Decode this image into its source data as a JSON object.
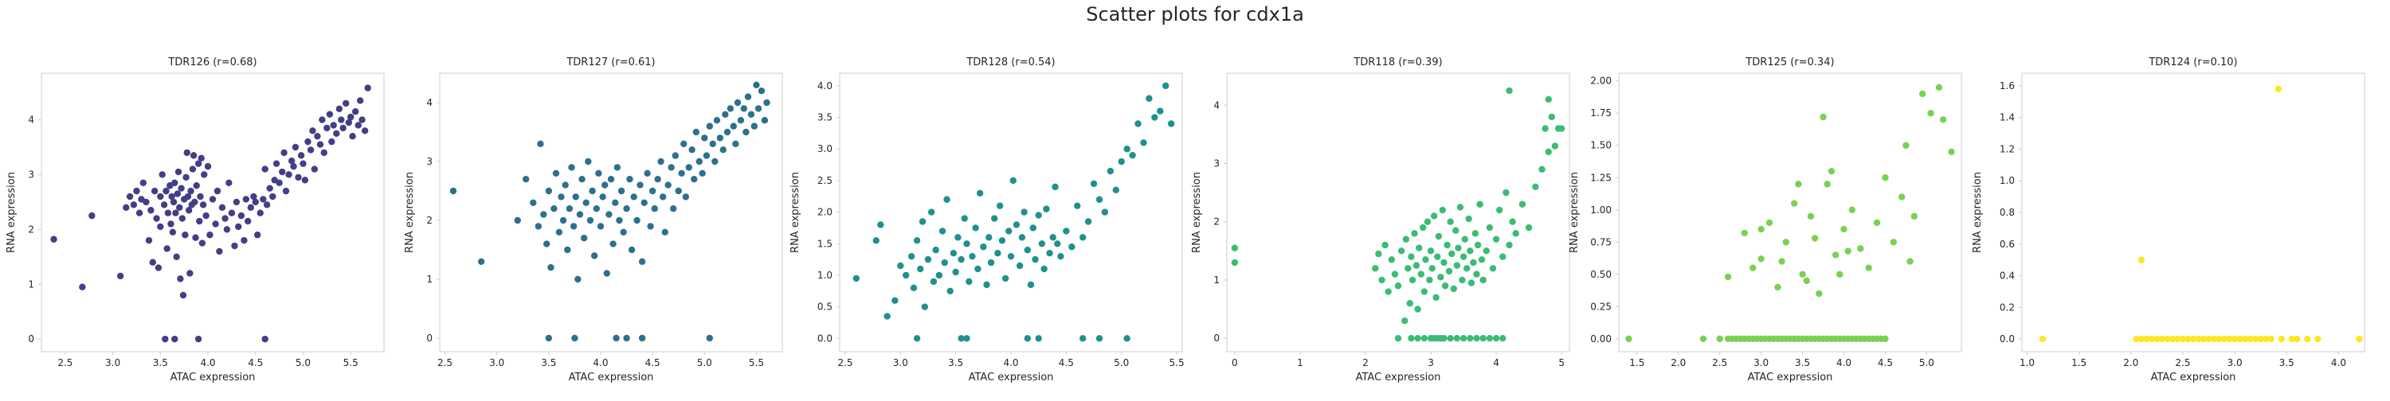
{
  "figure": {
    "title": "Scatter plots for cdx1a"
  },
  "chart_data": [
    {
      "type": "scatter",
      "title": "TDR126 (r=0.68)",
      "xlabel": "ATAC expression",
      "ylabel": "RNA expression",
      "xlim": [
        2.25,
        5.85
      ],
      "ylim": [
        -0.23,
        4.85
      ],
      "xticks": [
        "2.5",
        "3.0",
        "3.5",
        "4.0",
        "4.5",
        "5.0",
        "5.5"
      ],
      "xtick_values": [
        2.5,
        3.0,
        3.5,
        4.0,
        4.5,
        5.0,
        5.5
      ],
      "yticks": [
        "0",
        "1",
        "2",
        "3",
        "4"
      ],
      "ytick_values": [
        0,
        1,
        2,
        3,
        4
      ],
      "color": "#433e85",
      "grid": false,
      "x": [
        2.38,
        2.68,
        2.78,
        3.08,
        3.14,
        3.18,
        3.22,
        3.25,
        3.28,
        3.3,
        3.32,
        3.35,
        3.38,
        3.4,
        3.42,
        3.44,
        3.46,
        3.48,
        3.5,
        3.5,
        3.52,
        3.54,
        3.56,
        3.57,
        3.58,
        3.6,
        3.61,
        3.62,
        3.63,
        3.64,
        3.65,
        3.66,
        3.67,
        3.68,
        3.69,
        3.7,
        3.71,
        3.72,
        3.73,
        3.74,
        3.75,
        3.76,
        3.77,
        3.78,
        3.79,
        3.8,
        3.81,
        3.82,
        3.83,
        3.84,
        3.85,
        3.86,
        3.87,
        3.88,
        3.9,
        3.91,
        3.92,
        3.93,
        3.94,
        3.95,
        3.96,
        3.98,
        4.0,
        4.02,
        4.05,
        4.08,
        4.1,
        4.12,
        4.15,
        4.18,
        4.2,
        4.22,
        4.25,
        4.28,
        4.3,
        4.32,
        4.35,
        4.38,
        4.4,
        4.42,
        4.45,
        4.48,
        4.5,
        4.52,
        4.55,
        4.58,
        4.6,
        4.62,
        4.65,
        4.68,
        4.7,
        4.72,
        4.75,
        4.78,
        4.8,
        4.82,
        4.85,
        4.88,
        4.9,
        4.92,
        4.95,
        4.98,
        5.0,
        5.02,
        5.05,
        5.08,
        5.1,
        5.12,
        5.15,
        5.18,
        5.2,
        5.22,
        5.25,
        5.28,
        5.3,
        5.32,
        5.35,
        5.38,
        5.4,
        5.42,
        5.45,
        5.48,
        5.5,
        5.52,
        5.55,
        5.58,
        5.6,
        5.62,
        5.65,
        5.68,
        3.55,
        3.65,
        3.9,
        4.6
      ],
      "y": [
        1.82,
        0.95,
        2.25,
        1.15,
        2.4,
        2.6,
        2.45,
        2.7,
        2.3,
        2.55,
        2.85,
        2.5,
        1.8,
        2.35,
        1.4,
        2.7,
        2.2,
        1.3,
        2.6,
        2.05,
        3.0,
        2.45,
        2.7,
        1.65,
        2.3,
        2.8,
        2.1,
        2.6,
        1.95,
        2.5,
        2.85,
        2.3,
        1.5,
        2.65,
        3.05,
        2.4,
        1.1,
        2.75,
        2.2,
        0.8,
        2.55,
        1.9,
        2.95,
        3.4,
        2.6,
        2.35,
        1.2,
        2.7,
        2.45,
        3.1,
        3.35,
        2.5,
        1.85,
        2.8,
        3.2,
        2.15,
        2.6,
        3.3,
        1.75,
        2.45,
        3.0,
        2.25,
        3.15,
        1.9,
        2.55,
        2.1,
        2.7,
        1.6,
        2.4,
        2.2,
        2.0,
        2.85,
        2.3,
        1.7,
        2.5,
        2.05,
        2.25,
        1.8,
        2.55,
        2.15,
        2.4,
        2.6,
        2.5,
        1.9,
        2.3,
        2.55,
        3.1,
        2.45,
        2.75,
        2.6,
        2.9,
        3.2,
        2.85,
        3.05,
        3.4,
        2.7,
        3.0,
        3.25,
        3.15,
        3.5,
        2.95,
        3.35,
        3.2,
        2.9,
        3.6,
        3.45,
        3.8,
        3.1,
        3.7,
        3.55,
        4.0,
        3.4,
        3.85,
        4.1,
        3.6,
        3.9,
        3.75,
        4.2,
        4.0,
        3.85,
        4.3,
        3.95,
        4.05,
        3.7,
        4.15,
        3.9,
        4.35,
        4.0,
        3.8,
        4.58,
        0.0,
        0.0,
        0.0,
        0.0
      ]
    },
    {
      "type": "scatter",
      "title": "TDR127 (r=0.61)",
      "xlabel": "ATAC expression",
      "ylabel": "RNA expression",
      "xlim": [
        2.45,
        5.75
      ],
      "ylim": [
        -0.23,
        4.5
      ],
      "xticks": [
        "2.5",
        "3.0",
        "3.5",
        "4.0",
        "4.5",
        "5.0",
        "5.5"
      ],
      "xtick_values": [
        2.5,
        3.0,
        3.5,
        4.0,
        4.5,
        5.0,
        5.5
      ],
      "yticks": [
        "0",
        "1",
        "2",
        "3",
        "4"
      ],
      "ytick_values": [
        0,
        1,
        2,
        3,
        4
      ],
      "color": "#2d708e",
      "grid": false,
      "x": [
        2.58,
        2.85,
        3.2,
        3.28,
        3.35,
        3.4,
        3.42,
        3.45,
        3.48,
        3.5,
        3.52,
        3.55,
        3.57,
        3.6,
        3.62,
        3.64,
        3.66,
        3.68,
        3.7,
        3.72,
        3.74,
        3.76,
        3.78,
        3.8,
        3.82,
        3.84,
        3.86,
        3.88,
        3.9,
        3.92,
        3.94,
        3.96,
        3.98,
        4.0,
        4.02,
        4.04,
        4.06,
        4.08,
        4.1,
        4.12,
        4.14,
        4.16,
        4.18,
        4.2,
        4.22,
        4.25,
        4.28,
        4.3,
        4.32,
        4.35,
        4.38,
        4.4,
        4.42,
        4.45,
        4.48,
        4.5,
        4.52,
        4.55,
        4.58,
        4.6,
        4.62,
        4.65,
        4.68,
        4.7,
        4.72,
        4.75,
        4.78,
        4.8,
        4.82,
        4.85,
        4.88,
        4.9,
        4.92,
        4.95,
        4.98,
        5.0,
        5.02,
        5.05,
        5.08,
        5.1,
        5.12,
        5.15,
        5.18,
        5.2,
        5.22,
        5.25,
        5.28,
        5.3,
        5.32,
        5.35,
        5.38,
        5.4,
        5.42,
        5.45,
        5.48,
        5.5,
        5.52,
        5.55,
        5.58,
        5.6,
        3.5,
        3.75,
        4.15,
        4.25,
        4.4,
        5.05
      ],
      "y": [
        2.5,
        1.3,
        2.0,
        2.7,
        2.3,
        1.9,
        3.3,
        2.1,
        1.6,
        2.5,
        1.2,
        2.2,
        2.8,
        1.8,
        2.4,
        2.0,
        2.6,
        1.5,
        2.2,
        2.9,
        1.9,
        2.4,
        1.0,
        2.1,
        2.7,
        1.7,
        2.3,
        3.0,
        2.0,
        2.5,
        1.4,
        2.2,
        2.8,
        1.9,
        2.4,
        2.6,
        1.1,
        2.1,
        2.7,
        1.6,
        2.3,
        2.9,
        2.0,
        2.5,
        1.8,
        2.2,
        2.7,
        1.5,
        2.4,
        2.0,
        2.6,
        1.3,
        2.3,
        2.8,
        1.9,
        2.5,
        2.2,
        2.7,
        3.0,
        2.4,
        1.8,
        2.6,
        2.9,
        2.2,
        3.1,
        2.5,
        2.8,
        3.3,
        2.4,
        2.9,
        3.2,
        2.7,
        3.5,
        3.0,
        2.8,
        3.4,
        3.1,
        3.6,
        3.3,
        3.0,
        3.7,
        3.4,
        3.2,
        3.8,
        3.5,
        3.9,
        3.6,
        3.3,
        4.0,
        3.7,
        3.9,
        3.5,
        4.1,
        3.8,
        3.6,
        4.3,
        3.9,
        4.2,
        3.7,
        4.0,
        0.0,
        0.0,
        0.0,
        0.0,
        0.0,
        0.0
      ]
    },
    {
      "type": "scatter",
      "title": "TDR128 (r=0.54)",
      "xlabel": "ATAC expression",
      "ylabel": "RNA expression",
      "xlim": [
        2.45,
        5.55
      ],
      "ylim": [
        -0.21,
        4.2
      ],
      "xticks": [
        "2.5",
        "3.0",
        "3.5",
        "4.0",
        "4.5",
        "5.0",
        "5.5"
      ],
      "xtick_values": [
        2.5,
        3.0,
        3.5,
        4.0,
        4.5,
        5.0,
        5.5
      ],
      "yticks": [
        "0.0",
        "0.5",
        "1.0",
        "1.5",
        "2.0",
        "2.5",
        "3.0",
        "3.5",
        "4.0"
      ],
      "ytick_values": [
        0.0,
        0.5,
        1.0,
        1.5,
        2.0,
        2.5,
        3.0,
        3.5,
        4.0
      ],
      "color": "#20908d",
      "grid": false,
      "x": [
        2.6,
        2.78,
        2.82,
        2.88,
        2.95,
        3.0,
        3.05,
        3.1,
        3.12,
        3.15,
        3.18,
        3.2,
        3.22,
        3.25,
        3.28,
        3.3,
        3.32,
        3.35,
        3.38,
        3.4,
        3.42,
        3.45,
        3.48,
        3.5,
        3.52,
        3.55,
        3.58,
        3.6,
        3.62,
        3.65,
        3.68,
        3.7,
        3.72,
        3.75,
        3.78,
        3.8,
        3.82,
        3.85,
        3.88,
        3.9,
        3.92,
        3.95,
        3.98,
        4.0,
        4.02,
        4.05,
        4.08,
        4.1,
        4.12,
        4.15,
        4.18,
        4.2,
        4.22,
        4.25,
        4.28,
        4.3,
        4.32,
        4.35,
        4.38,
        4.4,
        4.42,
        4.45,
        4.5,
        4.55,
        4.6,
        4.65,
        4.7,
        4.75,
        4.8,
        4.85,
        4.9,
        4.95,
        5.0,
        5.05,
        5.1,
        5.15,
        5.2,
        5.25,
        5.3,
        5.35,
        5.4,
        5.45,
        3.15,
        3.55,
        3.6,
        4.15,
        4.25,
        4.65,
        4.8,
        5.05
      ],
      "y": [
        0.95,
        1.55,
        1.8,
        0.35,
        0.6,
        1.15,
        1.0,
        1.3,
        0.8,
        1.55,
        1.1,
        1.85,
        0.5,
        1.25,
        2.0,
        0.9,
        1.4,
        1.0,
        1.7,
        1.2,
        2.2,
        0.75,
        1.35,
        1.05,
        1.6,
        1.25,
        1.9,
        1.5,
        0.9,
        1.3,
        1.75,
        1.1,
        2.3,
        1.45,
        0.85,
        1.6,
        1.2,
        1.9,
        1.35,
        2.1,
        1.55,
        0.95,
        1.7,
        1.3,
        2.5,
        1.8,
        1.15,
        1.6,
        2.0,
        1.4,
        0.85,
        1.75,
        1.25,
        1.95,
        1.5,
        1.1,
        2.05,
        1.35,
        1.6,
        2.4,
        1.5,
        1.3,
        1.7,
        1.45,
        2.1,
        1.6,
        1.85,
        2.45,
        2.2,
        2.0,
        2.65,
        2.35,
        2.8,
        3.0,
        2.9,
        3.4,
        3.1,
        3.8,
        3.5,
        3.6,
        4.0,
        3.4,
        0.0,
        0.0,
        0.0,
        0.0,
        0.0,
        0.0,
        0.0,
        0.0
      ]
    },
    {
      "type": "scatter",
      "title": "TDR118 (r=0.39)",
      "xlabel": "ATAC expression",
      "ylabel": "RNA expression",
      "xlim": [
        -0.12,
        5.12
      ],
      "ylim": [
        -0.23,
        4.55
      ],
      "xticks": [
        "0",
        "1",
        "2",
        "3",
        "4",
        "5"
      ],
      "xtick_values": [
        0,
        1,
        2,
        3,
        4,
        5
      ],
      "yticks": [
        "0",
        "1",
        "2",
        "3",
        "4"
      ],
      "ytick_values": [
        0,
        1,
        2,
        3,
        4
      ],
      "color": "#3bbb75",
      "grid": false,
      "x": [
        0.0,
        0.0,
        2.15,
        2.2,
        2.25,
        2.3,
        2.35,
        2.4,
        2.45,
        2.5,
        2.55,
        2.6,
        2.62,
        2.65,
        2.68,
        2.7,
        2.72,
        2.75,
        2.78,
        2.8,
        2.82,
        2.85,
        2.88,
        2.9,
        2.92,
        2.95,
        2.98,
        3.0,
        3.02,
        3.05,
        3.08,
        3.1,
        3.12,
        3.15,
        3.18,
        3.2,
        3.22,
        3.25,
        3.28,
        3.3,
        3.32,
        3.35,
        3.38,
        3.4,
        3.42,
        3.45,
        3.48,
        3.5,
        3.52,
        3.55,
        3.58,
        3.6,
        3.62,
        3.65,
        3.68,
        3.7,
        3.72,
        3.75,
        3.78,
        3.8,
        3.85,
        3.9,
        3.95,
        4.0,
        4.05,
        4.1,
        4.15,
        4.2,
        4.25,
        4.3,
        4.4,
        4.5,
        4.6,
        4.7,
        4.75,
        4.8,
        4.85,
        4.9,
        4.95,
        5.0,
        4.2,
        4.8,
        2.5,
        2.7,
        2.8,
        2.9,
        3.0,
        3.05,
        3.1,
        3.15,
        3.2,
        3.3,
        3.4,
        3.5,
        3.6,
        3.7,
        3.8,
        3.9,
        4.0,
        4.1
      ],
      "y": [
        1.55,
        1.3,
        1.2,
        1.45,
        1.0,
        1.6,
        0.8,
        1.35,
        1.1,
        0.9,
        1.5,
        0.3,
        1.7,
        1.2,
        0.6,
        1.4,
        1.0,
        1.8,
        1.25,
        0.5,
        1.55,
        1.1,
        1.9,
        0.8,
        1.35,
        2.0,
        1.0,
        1.5,
        1.2,
        2.1,
        0.7,
        1.4,
        1.75,
        1.05,
        2.2,
        1.3,
        0.9,
        1.6,
        1.15,
        2.0,
        1.45,
        0.85,
        1.85,
        1.25,
        1.55,
        2.25,
        1.0,
        1.4,
        1.7,
        1.2,
        2.05,
        1.5,
        0.95,
        1.3,
        1.8,
        1.1,
        1.6,
        2.3,
        1.35,
        1.0,
        1.5,
        1.9,
        1.2,
        1.7,
        2.2,
        1.4,
        2.5,
        1.6,
        2.0,
        1.8,
        2.3,
        1.9,
        2.6,
        2.9,
        3.6,
        3.2,
        3.8,
        3.3,
        3.6,
        3.6,
        4.25,
        4.1,
        0.0,
        0.0,
        0.0,
        0.0,
        0.0,
        0.0,
        0.0,
        0.0,
        0.0,
        0.0,
        0.0,
        0.0,
        0.0,
        0.0,
        0.0,
        0.0,
        0.0,
        0.0
      ]
    },
    {
      "type": "scatter",
      "title": "TDR125 (r=0.34)",
      "xlabel": "ATAC expression",
      "ylabel": "RNA expression",
      "xlim": [
        1.28,
        5.42
      ],
      "ylim": [
        -0.1,
        2.06
      ],
      "xticks": [
        "1.5",
        "2.0",
        "2.5",
        "3.0",
        "3.5",
        "4.0",
        "4.5",
        "5.0"
      ],
      "xtick_values": [
        1.5,
        2.0,
        2.5,
        3.0,
        3.5,
        4.0,
        4.5,
        5.0
      ],
      "yticks": [
        "0.00",
        "0.25",
        "0.50",
        "0.75",
        "1.00",
        "1.25",
        "1.50",
        "1.75",
        "2.00"
      ],
      "ytick_values": [
        0.0,
        0.25,
        0.5,
        0.75,
        1.0,
        1.25,
        1.5,
        1.75,
        2.0
      ],
      "color": "#7ad151",
      "grid": false,
      "x": [
        1.4,
        2.3,
        2.5,
        2.6,
        2.65,
        2.7,
        2.75,
        2.8,
        2.85,
        2.9,
        2.95,
        3.0,
        3.05,
        3.1,
        3.15,
        3.2,
        3.25,
        3.3,
        3.35,
        3.4,
        3.45,
        3.5,
        3.55,
        3.6,
        3.65,
        3.7,
        3.75,
        3.8,
        3.85,
        3.9,
        3.95,
        4.0,
        4.05,
        4.1,
        4.15,
        4.2,
        4.25,
        4.3,
        4.35,
        4.4,
        4.45,
        4.5,
        2.6,
        2.8,
        2.9,
        3.0,
        3.1,
        3.2,
        3.3,
        3.4,
        3.5,
        3.6,
        3.7,
        3.75,
        3.8,
        3.9,
        4.0,
        4.1,
        4.2,
        4.3,
        4.4,
        4.5,
        4.6,
        4.7,
        4.75,
        4.8,
        4.85,
        4.95,
        5.05,
        5.15,
        5.2,
        5.3,
        3.0,
        3.25,
        3.45,
        3.55,
        3.65,
        3.85,
        3.95,
        4.05
      ],
      "y": [
        0.0,
        0.0,
        0.0,
        0.0,
        0.0,
        0.0,
        0.0,
        0.0,
        0.0,
        0.0,
        0.0,
        0.0,
        0.0,
        0.0,
        0.0,
        0.0,
        0.0,
        0.0,
        0.0,
        0.0,
        0.0,
        0.0,
        0.0,
        0.0,
        0.0,
        0.0,
        0.0,
        0.0,
        0.0,
        0.0,
        0.0,
        0.0,
        0.0,
        0.0,
        0.0,
        0.0,
        0.0,
        0.0,
        0.0,
        0.0,
        0.0,
        0.0,
        0.48,
        0.82,
        0.55,
        0.62,
        0.9,
        0.4,
        0.75,
        1.05,
        0.5,
        0.95,
        0.35,
        1.72,
        1.2,
        0.65,
        0.85,
        1.0,
        0.7,
        0.55,
        0.9,
        1.25,
        0.75,
        1.1,
        1.5,
        0.6,
        0.95,
        1.9,
        1.75,
        1.95,
        1.7,
        1.45,
        0.85,
        0.6,
        1.2,
        0.45,
        0.78,
        1.3,
        0.5,
        0.68
      ]
    },
    {
      "type": "scatter",
      "title": "TDR124 (r=0.10)",
      "xlabel": "ATAC expression",
      "ylabel": "RNA expression",
      "xlim": [
        0.95,
        4.25
      ],
      "ylim": [
        -0.08,
        1.68
      ],
      "xticks": [
        "1.0",
        "1.5",
        "2.0",
        "2.5",
        "3.0",
        "3.5",
        "4.0"
      ],
      "xtick_values": [
        1.0,
        1.5,
        2.0,
        2.5,
        3.0,
        3.5,
        4.0
      ],
      "yticks": [
        "0.0",
        "0.2",
        "0.4",
        "0.6",
        "0.8",
        "1.0",
        "1.2",
        "1.4",
        "1.6"
      ],
      "ytick_values": [
        0.0,
        0.2,
        0.4,
        0.6,
        0.8,
        1.0,
        1.2,
        1.4,
        1.6
      ],
      "color": "#fde725",
      "grid": false,
      "x": [
        1.15,
        2.05,
        2.1,
        2.15,
        2.2,
        2.25,
        2.3,
        2.35,
        2.4,
        2.45,
        2.5,
        2.55,
        2.6,
        2.65,
        2.7,
        2.75,
        2.8,
        2.85,
        2.9,
        2.95,
        3.0,
        3.05,
        3.1,
        3.15,
        3.2,
        3.25,
        3.3,
        3.35,
        3.45,
        3.55,
        3.6,
        3.7,
        3.8,
        4.2,
        2.1,
        3.42
      ],
      "y": [
        0.0,
        0.0,
        0.0,
        0.0,
        0.0,
        0.0,
        0.0,
        0.0,
        0.0,
        0.0,
        0.0,
        0.0,
        0.0,
        0.0,
        0.0,
        0.0,
        0.0,
        0.0,
        0.0,
        0.0,
        0.0,
        0.0,
        0.0,
        0.0,
        0.0,
        0.0,
        0.0,
        0.0,
        0.0,
        0.0,
        0.0,
        0.0,
        0.0,
        0.0,
        0.5,
        1.58
      ]
    }
  ]
}
